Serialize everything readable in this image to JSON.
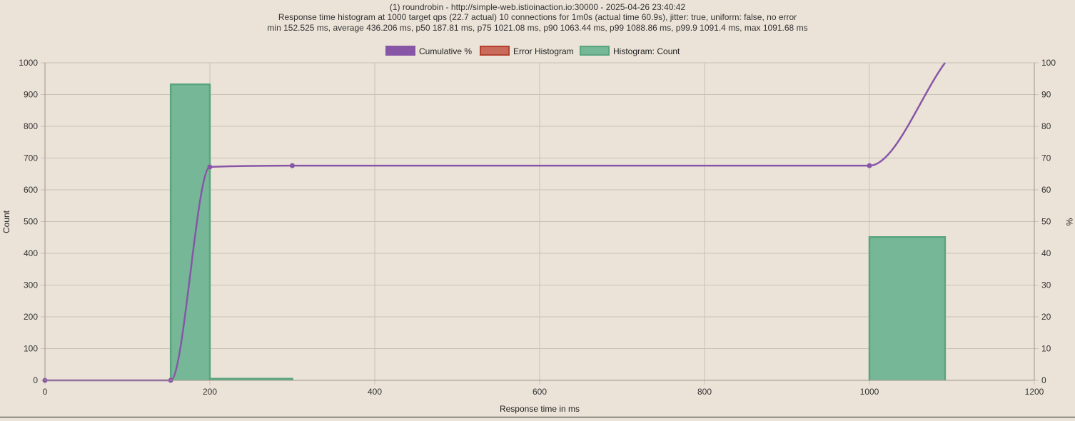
{
  "chart_data": {
    "type": "bar",
    "title_lines": [
      "(1) roundrobin - http://simple-web.istioinaction.io:30000 - 2025-04-26 23:40:42",
      "Response time histogram at 1000 target qps (22.7 actual) 10 connections for 1m0s (actual time 60.9s), jitter: true, uniform: false, no error",
      "min 152.525 ms, average 436.206 ms, p50 187.81 ms, p75 1021.08 ms, p90 1063.44 ms, p99 1088.86 ms, p99.9 1091.4 ms, max 1091.68 ms"
    ],
    "xlabel": "Response time in ms",
    "ylabel": "Count",
    "y2label": "%",
    "xlim": [
      0,
      1200
    ],
    "ylim": [
      0,
      1000
    ],
    "y2lim": [
      0,
      100
    ],
    "x_ticks": [
      0,
      200,
      400,
      600,
      800,
      1000,
      1200
    ],
    "y_ticks": [
      0,
      100,
      200,
      300,
      400,
      500,
      600,
      700,
      800,
      900,
      1000
    ],
    "y2_ticks": [
      0,
      10,
      20,
      30,
      40,
      50,
      60,
      70,
      80,
      90,
      100
    ],
    "grid": true,
    "legend_position": "top",
    "series": [
      {
        "name": "Cumulative %",
        "kind": "line",
        "axis": "right",
        "color": "#8856a7",
        "points": [
          {
            "x": 0,
            "y": 0
          },
          {
            "x": 152.525,
            "y": 0
          },
          {
            "x": 200,
            "y": 67.2
          },
          {
            "x": 300,
            "y": 67.6
          },
          {
            "x": 1000,
            "y": 67.6
          },
          {
            "x": 1091.68,
            "y": 100
          }
        ]
      },
      {
        "name": "Error Histogram",
        "kind": "bar",
        "axis": "left",
        "color": "#c86b5a",
        "border": "#b5412d",
        "bins": []
      },
      {
        "name": "Histogram: Count",
        "kind": "bar",
        "axis": "left",
        "color": "#76b797",
        "border": "#5aa57f",
        "bins": [
          {
            "start": 152.525,
            "end": 200,
            "count": 932
          },
          {
            "start": 200,
            "end": 300,
            "count": 5
          },
          {
            "start": 1000,
            "end": 1091.68,
            "count": 451
          }
        ]
      }
    ]
  }
}
